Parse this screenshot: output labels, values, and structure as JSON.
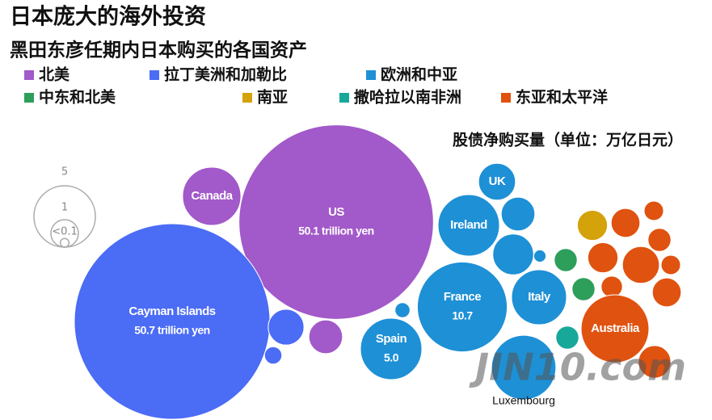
{
  "chart_data": {
    "type": "packed_bubble",
    "title": "日本庞大的海外投资",
    "subtitle": "黑田东彦任期内日本购买的各国资产",
    "note": "股债净购买量（单位：万亿日元）",
    "watermark": "JIN10.com",
    "size_legend": [
      {
        "value": 5,
        "label": "5"
      },
      {
        "value": 1,
        "label": "1"
      },
      {
        "value": 0.1,
        "label": "<0.1"
      }
    ],
    "series": [
      {
        "name": "北美",
        "color": "#a259c9",
        "labels": [
          "US",
          "Canada",
          null
        ],
        "values": [
          50.1,
          4.5,
          1.5
        ],
        "value_labels": [
          "50.1 trillion yen",
          null,
          null
        ]
      },
      {
        "name": "拉丁美洲和加勒比",
        "color": "#4b6cf5",
        "labels": [
          "Cayman Islands",
          null,
          null
        ],
        "values": [
          50.7,
          1.7,
          0.4
        ],
        "value_labels": [
          "50.7 trillion yen",
          null,
          null
        ]
      },
      {
        "name": "欧洲和中亚",
        "color": "#1e90d6",
        "labels": [
          "UK",
          "Ireland",
          null,
          null,
          null,
          "France",
          "Italy",
          "Spain",
          null,
          "Luxembourg"
        ],
        "values": [
          1.8,
          5.0,
          1.5,
          2.2,
          0.2,
          10.7,
          4.0,
          5.0,
          0.3,
          5.5
        ],
        "value_labels": [
          null,
          null,
          null,
          null,
          null,
          "10.7",
          null,
          "5.0",
          null,
          null
        ]
      },
      {
        "name": "中东和北美",
        "color": "#2e9e5b",
        "labels": [
          null,
          null
        ],
        "values": [
          0.7,
          0.7
        ],
        "value_labels": [
          null,
          null
        ]
      },
      {
        "name": "南亚",
        "color": "#d4a20a",
        "labels": [
          null
        ],
        "values": [
          1.2
        ],
        "value_labels": [
          null
        ]
      },
      {
        "name": "撒哈拉以南非洲",
        "color": "#17a89a",
        "labels": [
          null
        ],
        "values": [
          0.7
        ],
        "value_labels": [
          null
        ]
      },
      {
        "name": "东亚和太平洋",
        "color": "#e0520f",
        "labels": [
          null,
          null,
          null,
          null,
          null,
          null,
          null,
          null,
          "Australia",
          null
        ],
        "values": [
          1.1,
          0.5,
          1.2,
          1.8,
          0.7,
          0.5,
          0.6,
          1.1,
          6.1,
          1.4
        ],
        "value_labels": [
          null,
          null,
          null,
          null,
          null,
          null,
          null,
          null,
          null,
          null
        ]
      }
    ]
  }
}
